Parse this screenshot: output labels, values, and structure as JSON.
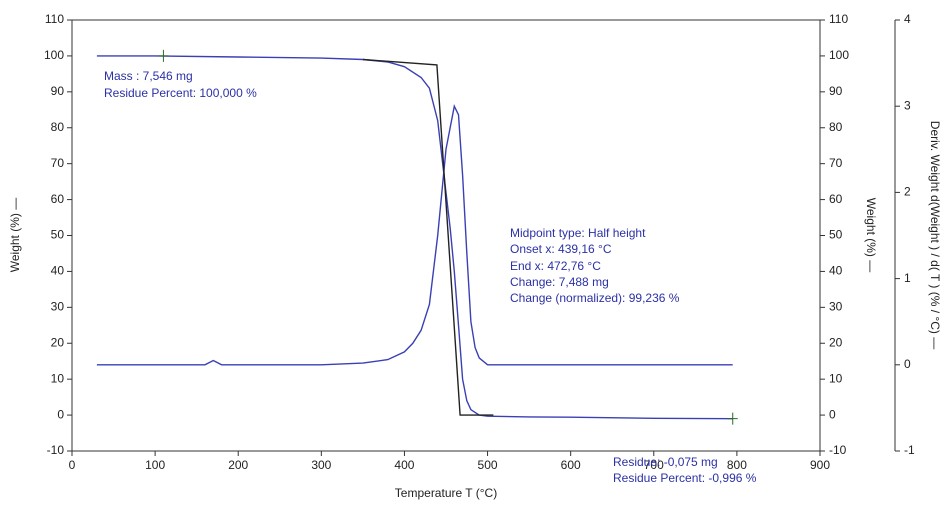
{
  "chart_data": {
    "type": "line",
    "xlabel": "Temperature T (°C)",
    "ylabel": "Weight (%) —",
    "y2label": "Weight (%) —",
    "y3label": "Deriv. Weight d(Weight ) / d( T ) (% / °C) —",
    "xlim": [
      0,
      900
    ],
    "xticks": [
      0,
      100,
      200,
      300,
      400,
      500,
      600,
      700,
      800,
      900
    ],
    "ylim": [
      -10,
      110
    ],
    "yticks": [
      -10,
      0,
      10,
      20,
      30,
      40,
      50,
      60,
      70,
      80,
      90,
      100,
      110
    ],
    "y2lim": [
      -10,
      110
    ],
    "y2ticks": [
      -10,
      0,
      10,
      20,
      30,
      40,
      50,
      60,
      70,
      80,
      90,
      100,
      110
    ],
    "y3lim": [
      -1,
      4
    ],
    "y3ticks": [
      -1,
      0,
      1,
      2,
      3,
      4
    ],
    "series": [
      {
        "color": "#3a40b4",
        "x": [
          30,
          100,
          200,
          300,
          350,
          380,
          400,
          420,
          430,
          440,
          450,
          455,
          460,
          465,
          470,
          475,
          480,
          490,
          500,
          550,
          600,
          700,
          795
        ],
        "values": [
          100,
          100,
          99.7,
          99.4,
          99,
          98.3,
          97,
          94,
          91,
          82,
          62,
          52,
          40,
          25,
          10,
          4,
          1.5,
          0,
          -0.3,
          -0.5,
          -0.6,
          -0.9,
          -1
        ]
      },
      {
        "color": "#3a40b4",
        "axis": "y3",
        "x": [
          30,
          100,
          160,
          170,
          180,
          300,
          350,
          380,
          400,
          410,
          420,
          430,
          440,
          450,
          460,
          465,
          470,
          475,
          480,
          485,
          490,
          500,
          600,
          700,
          795
        ],
        "values": [
          0,
          0,
          0,
          0.05,
          0,
          0,
          0.02,
          0.06,
          0.15,
          0.25,
          0.4,
          0.7,
          1.5,
          2.5,
          3.0,
          2.9,
          2.2,
          1.3,
          0.5,
          0.2,
          0.08,
          0,
          0,
          0,
          0
        ]
      },
      {
        "color": "#222222",
        "x": [
          350,
          439,
          467,
          507
        ],
        "values": [
          99,
          97.5,
          0,
          0
        ]
      }
    ],
    "markers": {
      "color": "#2a6a2a",
      "x": [
        110,
        795
      ],
      "values": [
        100,
        -1
      ]
    },
    "annotations": [
      "Mass : 7,546 mg",
      "Residue Percent: 100,000 %",
      "Midpoint type: Half height",
      "Onset x: 439,16 °C",
      "End x: 472,76 °C",
      "Change: 7,488 mg",
      "Change (normalized): 99,236 %",
      "Residue: -0,075 mg",
      "Residue Percent: -0,996 %"
    ]
  }
}
